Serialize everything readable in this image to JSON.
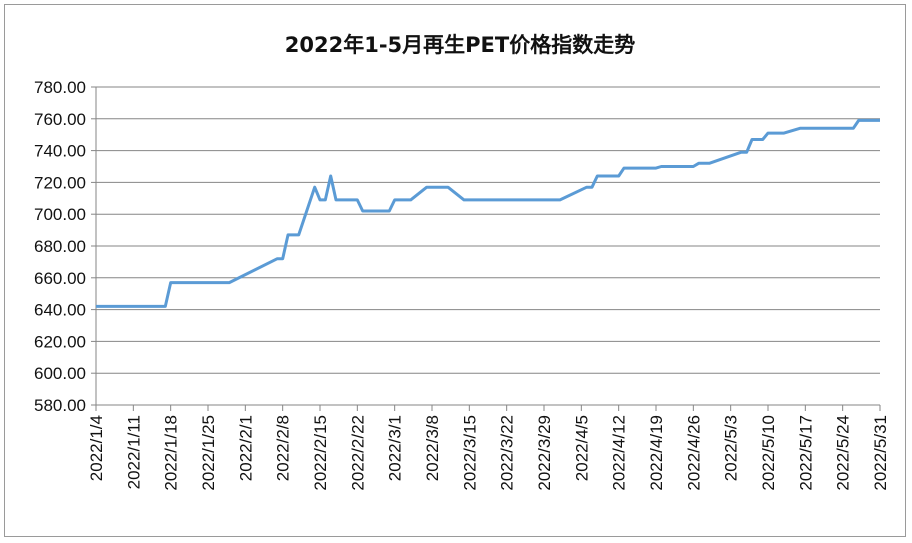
{
  "chart_data": {
    "type": "line",
    "title": "2022年1-5月再生PET价格指数走势",
    "xlabel": "",
    "ylabel": "",
    "ylim": [
      580,
      780
    ],
    "y_ticks": [
      "580.00",
      "600.00",
      "620.00",
      "640.00",
      "660.00",
      "680.00",
      "700.00",
      "720.00",
      "740.00",
      "760.00",
      "780.00"
    ],
    "x_ticks": [
      "2022/1/4",
      "2022/1/11",
      "2022/1/18",
      "2022/1/25",
      "2022/2/1",
      "2022/2/8",
      "2022/2/15",
      "2022/2/22",
      "2022/3/1",
      "2022/3/8",
      "2022/3/15",
      "2022/3/22",
      "2022/3/29",
      "2022/4/5",
      "2022/4/12",
      "2022/4/19",
      "2022/4/26",
      "2022/5/3",
      "2022/5/10",
      "2022/5/17",
      "2022/5/24",
      "2022/5/31"
    ],
    "grid": true,
    "legend": "none",
    "colors": {
      "line": "#5b9bd5",
      "grid": "#868686",
      "axis": "#868686"
    },
    "series": [
      {
        "x": [
          "2022/1/4",
          "2022/1/5",
          "2022/1/6",
          "2022/1/7",
          "2022/1/10",
          "2022/1/11",
          "2022/1/12",
          "2022/1/13",
          "2022/1/14",
          "2022/1/17",
          "2022/1/18",
          "2022/1/19",
          "2022/1/20",
          "2022/1/21",
          "2022/1/24",
          "2022/1/25",
          "2022/1/26",
          "2022/1/27",
          "2022/1/28",
          "2022/1/29",
          "2022/2/7",
          "2022/2/8",
          "2022/2/9",
          "2022/2/10",
          "2022/2/11",
          "2022/2/14",
          "2022/2/15",
          "2022/2/16",
          "2022/2/17",
          "2022/2/18",
          "2022/2/21",
          "2022/2/22",
          "2022/2/23",
          "2022/2/24",
          "2022/2/25",
          "2022/2/28",
          "2022/3/1",
          "2022/3/2",
          "2022/3/3",
          "2022/3/4",
          "2022/3/7",
          "2022/3/8",
          "2022/3/9",
          "2022/3/10",
          "2022/3/11",
          "2022/3/14",
          "2022/3/15",
          "2022/3/16",
          "2022/3/17",
          "2022/3/18",
          "2022/3/21",
          "2022/3/22",
          "2022/3/23",
          "2022/3/24",
          "2022/3/25",
          "2022/3/28",
          "2022/3/29",
          "2022/3/30",
          "2022/3/31",
          "2022/4/1",
          "2022/4/6",
          "2022/4/7",
          "2022/4/8",
          "2022/4/11",
          "2022/4/12",
          "2022/4/13",
          "2022/4/14",
          "2022/4/15",
          "2022/4/18",
          "2022/4/19",
          "2022/4/20",
          "2022/4/21",
          "2022/4/22",
          "2022/4/25",
          "2022/4/26",
          "2022/4/27",
          "2022/4/28",
          "2022/4/29",
          "2022/5/5",
          "2022/5/6",
          "2022/5/7",
          "2022/5/9",
          "2022/5/10",
          "2022/5/11",
          "2022/5/12",
          "2022/5/13",
          "2022/5/16",
          "2022/5/17",
          "2022/5/18",
          "2022/5/19",
          "2022/5/20",
          "2022/5/23",
          "2022/5/24",
          "2022/5/25",
          "2022/5/26",
          "2022/5/27",
          "2022/5/30",
          "2022/5/31"
        ],
        "y": [
          642,
          642,
          642,
          642,
          642,
          642,
          642,
          642,
          642,
          642,
          657,
          657,
          657,
          657,
          657,
          657,
          657,
          657,
          657,
          657,
          672,
          672,
          687,
          687,
          687,
          717,
          709,
          709,
          724,
          709,
          709,
          709,
          702,
          702,
          702,
          702,
          709,
          709,
          709,
          709,
          717,
          717,
          717,
          717,
          717,
          709,
          709,
          709,
          709,
          709,
          709,
          709,
          709,
          709,
          709,
          709,
          709,
          709,
          709,
          709,
          717,
          717,
          724,
          724,
          724,
          729,
          729,
          729,
          729,
          729,
          730,
          730,
          730,
          730,
          730,
          732,
          732,
          732,
          739,
          739,
          747,
          747,
          751,
          751,
          751,
          751,
          754,
          754,
          754,
          754,
          754,
          754,
          754,
          754,
          754,
          759,
          759,
          759
        ]
      }
    ]
  }
}
